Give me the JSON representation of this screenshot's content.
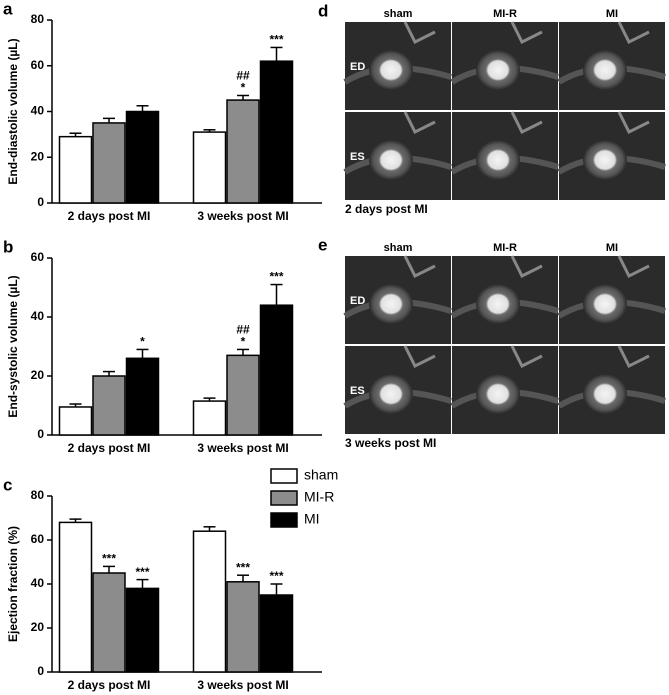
{
  "chart_data": [
    {
      "type": "bar",
      "panel": "a",
      "ylabel": "End-diastolic volume (µL)",
      "categories": [
        "2 days post MI",
        "3 weeks post MI"
      ],
      "ylim": [
        0,
        80
      ],
      "yticks": [
        0,
        20,
        40,
        60,
        80
      ],
      "series": [
        {
          "color": "#ffffff",
          "values": [
            29,
            31
          ],
          "errors": [
            1.5,
            1
          ]
        },
        {
          "color": "#8c8c8c",
          "values": [
            35,
            45
          ],
          "errors": [
            2,
            2
          ],
          "annotations": [
            null,
            [
              "##",
              "*"
            ]
          ]
        },
        {
          "color": "#000000",
          "values": [
            40,
            62
          ],
          "errors": [
            2.5,
            6
          ],
          "annotations": [
            null,
            [
              "***"
            ]
          ]
        }
      ]
    },
    {
      "type": "bar",
      "panel": "b",
      "ylabel": "End-systolic volume (µL)",
      "categories": [
        "2 days post MI",
        "3 weeks post MI"
      ],
      "ylim": [
        0,
        60
      ],
      "yticks": [
        0,
        20,
        40,
        60
      ],
      "series": [
        {
          "color": "#ffffff",
          "values": [
            9.5,
            11.5
          ],
          "errors": [
            1,
            1
          ]
        },
        {
          "color": "#8c8c8c",
          "values": [
            20,
            27
          ],
          "errors": [
            1.5,
            2
          ],
          "annotations": [
            null,
            [
              "##",
              "*"
            ]
          ]
        },
        {
          "color": "#000000",
          "values": [
            26,
            44
          ],
          "errors": [
            3,
            7
          ],
          "annotations": [
            [
              "*"
            ],
            [
              "***"
            ]
          ]
        }
      ]
    },
    {
      "type": "bar",
      "panel": "c",
      "ylabel": "Ejection fraction (%)",
      "categories": [
        "2 days post MI",
        "3 weeks post MI"
      ],
      "ylim": [
        0,
        80
      ],
      "yticks": [
        0,
        20,
        40,
        60,
        80
      ],
      "legend": "upper right",
      "series": [
        {
          "name": "sham",
          "color": "#ffffff",
          "values": [
            68,
            64
          ],
          "errors": [
            1.5,
            2
          ]
        },
        {
          "name": "MI-R",
          "color": "#8c8c8c",
          "values": [
            45,
            41
          ],
          "errors": [
            3,
            3
          ],
          "annotations": [
            [
              "***"
            ],
            [
              "***"
            ]
          ]
        },
        {
          "name": "MI",
          "color": "#000000",
          "values": [
            38,
            35
          ],
          "errors": [
            4,
            5
          ],
          "annotations": [
            [
              "***"
            ],
            [
              "***"
            ]
          ]
        }
      ]
    }
  ],
  "image_panels": [
    {
      "panel": "d",
      "columns": [
        "sham",
        "MI-R",
        "MI"
      ],
      "rows": [
        "ED",
        "ES"
      ],
      "caption": "2 days post MI"
    },
    {
      "panel": "e",
      "columns": [
        "sham",
        "MI-R",
        "MI"
      ],
      "rows": [
        "ED",
        "ES"
      ],
      "caption": "3 weeks post MI"
    }
  ]
}
